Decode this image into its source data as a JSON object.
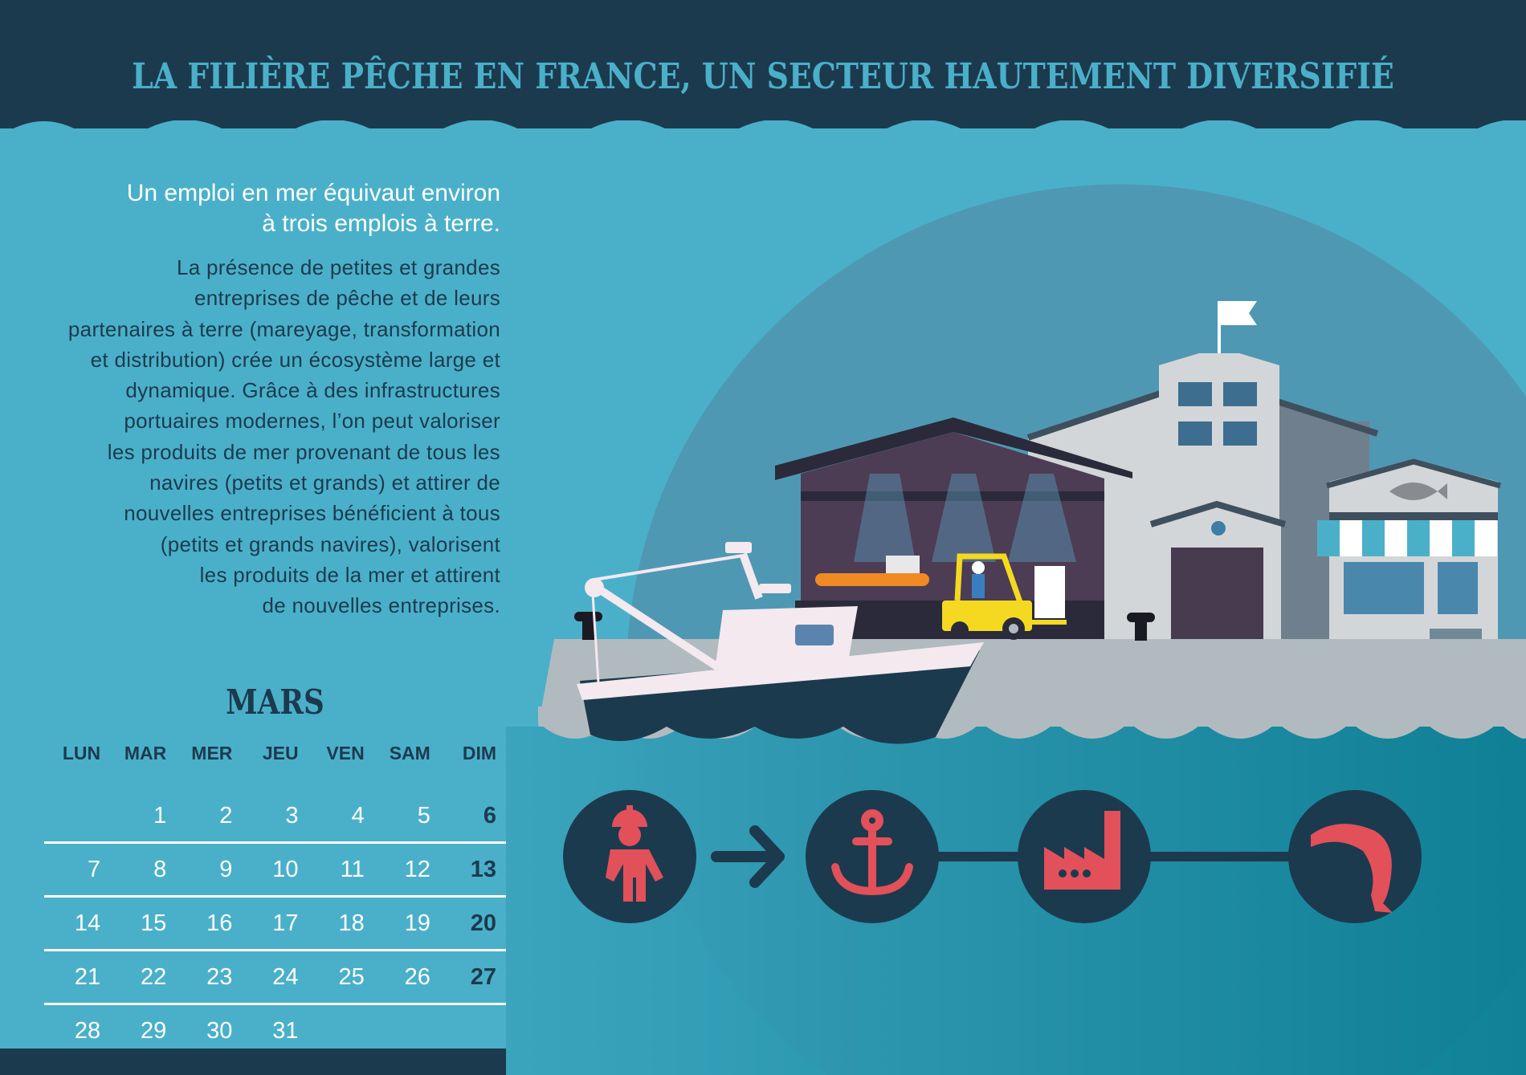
{
  "header": {
    "title": "LA FILIÈRE PÊCHE EN FRANCE, UN SECTEUR HAUTEMENT DIVERSIFIÉ"
  },
  "intro": {
    "lead_lines": [
      "Un emploi en mer équivaut environ",
      "à trois emplois à terre."
    ],
    "body_lines": [
      "La présence de petites et grandes",
      "entreprises de pêche et de leurs",
      "partenaires à terre (mareyage, transformation",
      "et distribution) crée un écosystème large et",
      "dynamique. Grâce à des infrastructures",
      "portuaires modernes, l’on peut valoriser",
      "les produits de mer provenant de tous les",
      "navires (petits et grands) et attirer de",
      "nouvelles entreprises bénéficient à tous",
      "(petits et grands navires), valorisent",
      "les produits de la mer et attirent",
      "de nouvelles entreprises."
    ]
  },
  "calendar": {
    "month": "MARS",
    "days": [
      "LUN",
      "MAR",
      "MER",
      "JEU",
      "VEN",
      "SAM",
      "DIM"
    ],
    "weeks": [
      [
        "",
        "1",
        "2",
        "3",
        "4",
        "5",
        "6"
      ],
      [
        "7",
        "8",
        "9",
        "10",
        "11",
        "12",
        "13"
      ],
      [
        "14",
        "15",
        "16",
        "17",
        "18",
        "19",
        "20"
      ],
      [
        "21",
        "22",
        "23",
        "24",
        "25",
        "26",
        "27"
      ],
      [
        "28",
        "29",
        "30",
        "31",
        "",
        "",
        ""
      ]
    ]
  },
  "chain_icons": [
    "fisherman-icon",
    "anchor-icon",
    "factory-icon",
    "fish-icon"
  ],
  "colors": {
    "navy": "#1c3a4e",
    "sea": "#4ab0c9",
    "accent": "#e2505a",
    "yellow": "#f5d920"
  }
}
